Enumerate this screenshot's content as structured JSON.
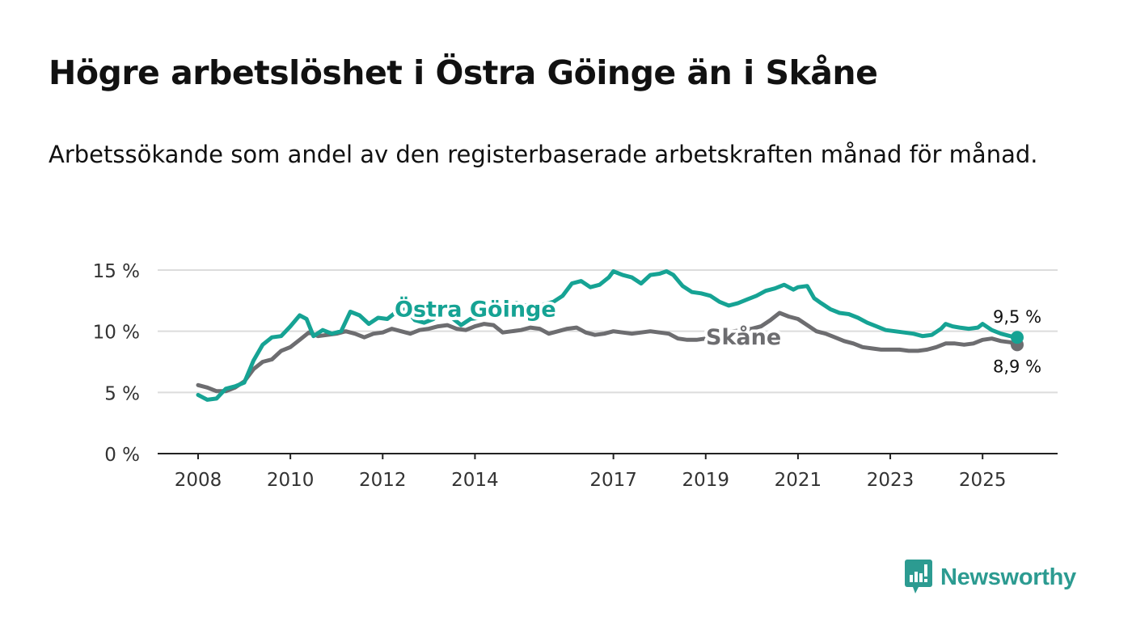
{
  "title": "Högre arbetslöshet i Östra Göinge än i Skåne",
  "subtitle": "Arbetssökande som andel av den registerbaserade arbetskraften månad för månad.",
  "brand": {
    "name": "Newsworthy",
    "icon": "newsworthy-logo-icon",
    "color": "#2c9b91"
  },
  "chart_data": {
    "type": "line",
    "ylim": [
      0,
      15
    ],
    "xlim": [
      2008,
      2026.2
    ],
    "y_ticks": [
      {
        "value": 0,
        "label": "0 %"
      },
      {
        "value": 5,
        "label": "5 %"
      },
      {
        "value": 10,
        "label": "10 %"
      },
      {
        "value": 15,
        "label": "15 %"
      }
    ],
    "x_ticks": [
      {
        "value": 2008,
        "label": "2008"
      },
      {
        "value": 2010,
        "label": "2010"
      },
      {
        "value": 2012,
        "label": "2012"
      },
      {
        "value": 2014,
        "label": "2014"
      },
      {
        "value": 2017,
        "label": "2017"
      },
      {
        "value": 2019,
        "label": "2019"
      },
      {
        "value": 2021,
        "label": "2021"
      },
      {
        "value": 2023,
        "label": "2023"
      },
      {
        "value": 2025,
        "label": "2025"
      }
    ],
    "series": [
      {
        "name": "Östra Göinge",
        "color": "#16a394",
        "label_anchor": [
          12.7,
          11.8
        ],
        "last_value_label": "9,5 %",
        "points": [
          [
            2008.0,
            4.8
          ],
          [
            2008.2,
            4.4
          ],
          [
            2008.4,
            4.5
          ],
          [
            2008.6,
            5.3
          ],
          [
            2008.8,
            5.5
          ],
          [
            2009.0,
            5.8
          ],
          [
            2009.2,
            7.6
          ],
          [
            2009.4,
            8.9
          ],
          [
            2009.6,
            9.5
          ],
          [
            2009.8,
            9.6
          ],
          [
            2010.0,
            10.4
          ],
          [
            2010.2,
            11.3
          ],
          [
            2010.35,
            11.0
          ],
          [
            2010.5,
            9.6
          ],
          [
            2010.7,
            10.1
          ],
          [
            2010.9,
            9.8
          ],
          [
            2011.1,
            10.0
          ],
          [
            2011.3,
            11.6
          ],
          [
            2011.5,
            11.3
          ],
          [
            2011.7,
            10.6
          ],
          [
            2011.9,
            11.1
          ],
          [
            2012.1,
            11.0
          ],
          [
            2012.3,
            11.6
          ],
          [
            2012.5,
            11.8
          ],
          [
            2012.7,
            10.9
          ],
          [
            2012.9,
            10.7
          ],
          [
            2013.1,
            11.0
          ],
          [
            2013.3,
            11.7
          ],
          [
            2013.5,
            11.1
          ],
          [
            2013.7,
            10.5
          ],
          [
            2013.9,
            11.0
          ],
          [
            2014.1,
            11.1
          ],
          [
            2014.3,
            11.5
          ],
          [
            2014.5,
            11.9
          ],
          [
            2014.7,
            12.1
          ],
          [
            2014.9,
            12.3
          ],
          [
            2015.1,
            12.1
          ],
          [
            2015.3,
            11.8
          ],
          [
            2015.5,
            12.2
          ],
          [
            2015.7,
            12.4
          ],
          [
            2015.9,
            12.9
          ],
          [
            2016.1,
            13.9
          ],
          [
            2016.3,
            14.1
          ],
          [
            2016.5,
            13.6
          ],
          [
            2016.7,
            13.8
          ],
          [
            2016.9,
            14.4
          ],
          [
            2017.0,
            14.9
          ],
          [
            2017.2,
            14.6
          ],
          [
            2017.4,
            14.4
          ],
          [
            2017.6,
            13.9
          ],
          [
            2017.8,
            14.6
          ],
          [
            2018.0,
            14.7
          ],
          [
            2018.15,
            14.9
          ],
          [
            2018.3,
            14.6
          ],
          [
            2018.5,
            13.7
          ],
          [
            2018.7,
            13.2
          ],
          [
            2018.9,
            13.1
          ],
          [
            2019.1,
            12.9
          ],
          [
            2019.3,
            12.4
          ],
          [
            2019.5,
            12.1
          ],
          [
            2019.7,
            12.3
          ],
          [
            2019.9,
            12.6
          ],
          [
            2020.1,
            12.9
          ],
          [
            2020.3,
            13.3
          ],
          [
            2020.5,
            13.5
          ],
          [
            2020.7,
            13.8
          ],
          [
            2020.9,
            13.4
          ],
          [
            2021.0,
            13.6
          ],
          [
            2021.2,
            13.7
          ],
          [
            2021.35,
            12.7
          ],
          [
            2021.5,
            12.3
          ],
          [
            2021.7,
            11.8
          ],
          [
            2021.9,
            11.5
          ],
          [
            2022.1,
            11.4
          ],
          [
            2022.3,
            11.1
          ],
          [
            2022.5,
            10.7
          ],
          [
            2022.7,
            10.4
          ],
          [
            2022.9,
            10.1
          ],
          [
            2023.1,
            10.0
          ],
          [
            2023.3,
            9.9
          ],
          [
            2023.5,
            9.8
          ],
          [
            2023.7,
            9.6
          ],
          [
            2023.9,
            9.7
          ],
          [
            2024.1,
            10.2
          ],
          [
            2024.2,
            10.6
          ],
          [
            2024.35,
            10.4
          ],
          [
            2024.5,
            10.3
          ],
          [
            2024.7,
            10.2
          ],
          [
            2024.9,
            10.3
          ],
          [
            2025.0,
            10.6
          ],
          [
            2025.2,
            10.1
          ],
          [
            2025.4,
            9.8
          ],
          [
            2025.6,
            9.6
          ],
          [
            2025.75,
            9.5
          ]
        ]
      },
      {
        "name": "Skåne",
        "color": "#6d6d70",
        "label_anchor": [
          19.0,
          9.5
        ],
        "last_value_label": "8,9 %",
        "points": [
          [
            2008.0,
            5.6
          ],
          [
            2008.2,
            5.4
          ],
          [
            2008.4,
            5.1
          ],
          [
            2008.6,
            5.1
          ],
          [
            2008.8,
            5.4
          ],
          [
            2009.0,
            5.9
          ],
          [
            2009.2,
            6.9
          ],
          [
            2009.4,
            7.5
          ],
          [
            2009.6,
            7.7
          ],
          [
            2009.8,
            8.4
          ],
          [
            2010.0,
            8.7
          ],
          [
            2010.2,
            9.3
          ],
          [
            2010.4,
            9.9
          ],
          [
            2010.6,
            9.6
          ],
          [
            2010.8,
            9.7
          ],
          [
            2011.0,
            9.8
          ],
          [
            2011.2,
            10.0
          ],
          [
            2011.4,
            9.8
          ],
          [
            2011.6,
            9.5
          ],
          [
            2011.8,
            9.8
          ],
          [
            2012.0,
            9.9
          ],
          [
            2012.2,
            10.2
          ],
          [
            2012.4,
            10.0
          ],
          [
            2012.6,
            9.8
          ],
          [
            2012.8,
            10.1
          ],
          [
            2013.0,
            10.2
          ],
          [
            2013.2,
            10.4
          ],
          [
            2013.4,
            10.5
          ],
          [
            2013.6,
            10.2
          ],
          [
            2013.8,
            10.1
          ],
          [
            2014.0,
            10.4
          ],
          [
            2014.2,
            10.6
          ],
          [
            2014.4,
            10.5
          ],
          [
            2014.6,
            9.9
          ],
          [
            2014.8,
            10.0
          ],
          [
            2015.0,
            10.1
          ],
          [
            2015.2,
            10.3
          ],
          [
            2015.4,
            10.2
          ],
          [
            2015.6,
            9.8
          ],
          [
            2015.8,
            10.0
          ],
          [
            2016.0,
            10.2
          ],
          [
            2016.2,
            10.3
          ],
          [
            2016.4,
            9.9
          ],
          [
            2016.6,
            9.7
          ],
          [
            2016.8,
            9.8
          ],
          [
            2017.0,
            10.0
          ],
          [
            2017.2,
            9.9
          ],
          [
            2017.4,
            9.8
          ],
          [
            2017.6,
            9.9
          ],
          [
            2017.8,
            10.0
          ],
          [
            2018.0,
            9.9
          ],
          [
            2018.2,
            9.8
          ],
          [
            2018.4,
            9.4
          ],
          [
            2018.6,
            9.3
          ],
          [
            2018.8,
            9.3
          ],
          [
            2019.0,
            9.4
          ],
          [
            2019.2,
            9.6
          ],
          [
            2019.4,
            9.9
          ],
          [
            2019.6,
            10.0
          ],
          [
            2019.8,
            10.1
          ],
          [
            2020.0,
            10.2
          ],
          [
            2020.2,
            10.4
          ],
          [
            2020.4,
            10.9
          ],
          [
            2020.6,
            11.5
          ],
          [
            2020.8,
            11.2
          ],
          [
            2021.0,
            11.0
          ],
          [
            2021.2,
            10.5
          ],
          [
            2021.4,
            10.0
          ],
          [
            2021.6,
            9.8
          ],
          [
            2021.8,
            9.5
          ],
          [
            2022.0,
            9.2
          ],
          [
            2022.2,
            9.0
          ],
          [
            2022.4,
            8.7
          ],
          [
            2022.6,
            8.6
          ],
          [
            2022.8,
            8.5
          ],
          [
            2023.0,
            8.5
          ],
          [
            2023.2,
            8.5
          ],
          [
            2023.4,
            8.4
          ],
          [
            2023.6,
            8.4
          ],
          [
            2023.8,
            8.5
          ],
          [
            2024.0,
            8.7
          ],
          [
            2024.2,
            9.0
          ],
          [
            2024.4,
            9.0
          ],
          [
            2024.6,
            8.9
          ],
          [
            2024.8,
            9.0
          ],
          [
            2025.0,
            9.3
          ],
          [
            2025.2,
            9.4
          ],
          [
            2025.4,
            9.2
          ],
          [
            2025.6,
            9.1
          ],
          [
            2025.75,
            8.9
          ]
        ]
      }
    ]
  }
}
